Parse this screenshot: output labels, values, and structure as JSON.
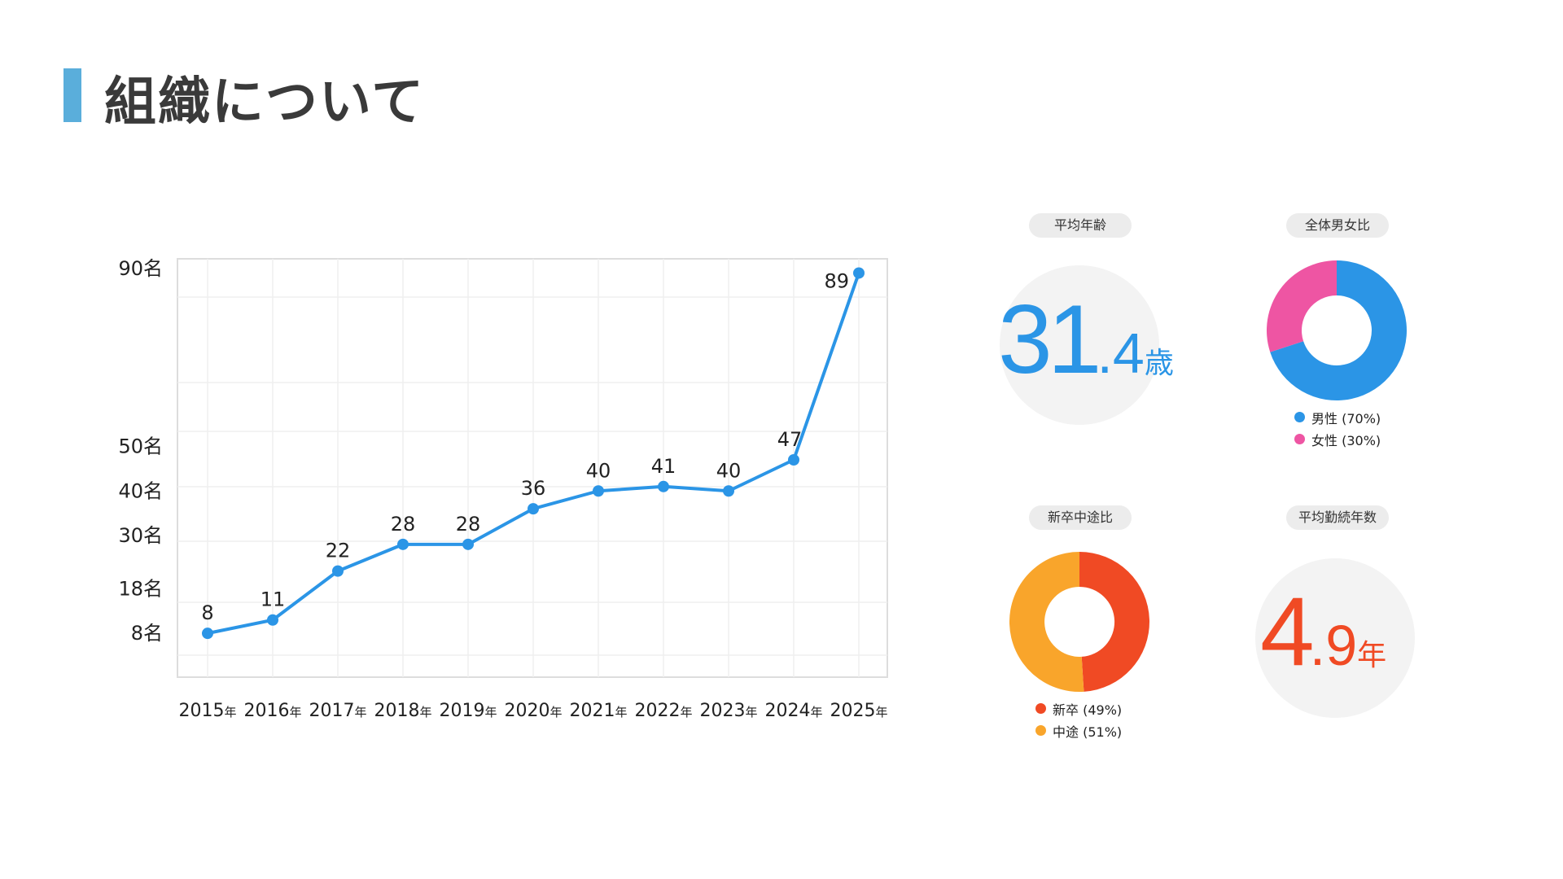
{
  "page": {
    "title": "組織について"
  },
  "chart_data": {
    "type": "line",
    "categories": [
      "2015年",
      "2016年",
      "2017年",
      "2018年",
      "2019年",
      "2020年",
      "2021年",
      "2022年",
      "2023年",
      "2024年",
      "2025年"
    ],
    "values": [
      8,
      11,
      22,
      28,
      28,
      36,
      40,
      41,
      40,
      47,
      89
    ],
    "y_ticks": [
      {
        "value": 8,
        "label": "8名"
      },
      {
        "value": 18,
        "label": "18名"
      },
      {
        "value": 30,
        "label": "30名"
      },
      {
        "value": 40,
        "label": "40名"
      },
      {
        "value": 50,
        "label": "50名"
      },
      {
        "value": 90,
        "label": "90名"
      }
    ],
    "ylim": [
      4,
      90
    ],
    "grid": true,
    "color": "#2b95e6"
  },
  "stats": {
    "avg_age": {
      "label": "平均年齢",
      "int": "31",
      "dec": ".4",
      "unit": "歳",
      "color": "#2b95e6"
    },
    "gender": {
      "label": "全体男女比",
      "slices": [
        {
          "name": "男性 (70%)",
          "value": 70,
          "color": "#2b95e6"
        },
        {
          "name": "女性 (30%)",
          "value": 30,
          "color": "#ee55a3"
        }
      ]
    },
    "hire_type": {
      "label": "新卒中途比",
      "slices": [
        {
          "name": "新卒 (49%)",
          "value": 49,
          "color": "#f04a24"
        },
        {
          "name": "中途 (51%)",
          "value": 51,
          "color": "#f9a52b"
        }
      ]
    },
    "avg_tenure": {
      "label": "平均勤続年数",
      "int": "4",
      "dec": ".9",
      "unit": "年",
      "color": "#f04a24"
    }
  }
}
